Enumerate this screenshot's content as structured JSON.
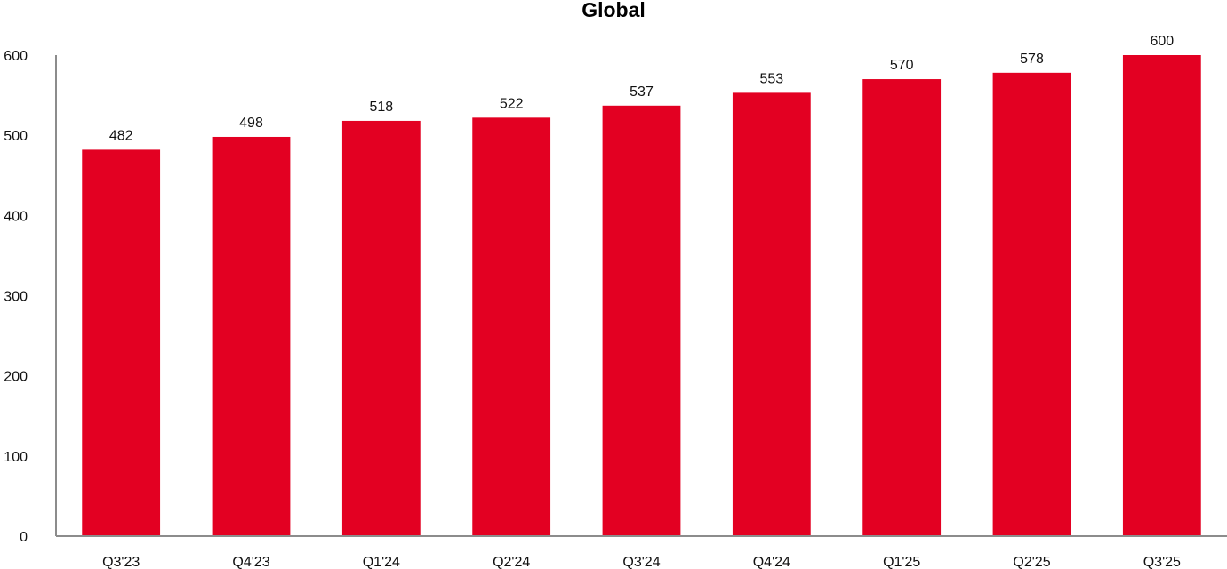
{
  "chart_data": {
    "type": "bar",
    "title": "Global",
    "xlabel": "",
    "ylabel": "",
    "categories": [
      "Q3'23",
      "Q4'23",
      "Q1'24",
      "Q2'24",
      "Q3'24",
      "Q4'24",
      "Q1'25",
      "Q2'25",
      "Q3'25"
    ],
    "values": [
      482,
      498,
      518,
      522,
      537,
      553,
      570,
      578,
      600
    ],
    "data_labels": [
      "482",
      "498",
      "518",
      "522",
      "537",
      "553",
      "570",
      "578",
      "600"
    ],
    "ylim": [
      0,
      600
    ],
    "yticks": [
      "0",
      "100",
      "200",
      "300",
      "400",
      "500",
      "600"
    ],
    "grid": false,
    "legend": "none",
    "colors": {
      "bar": "#e30022",
      "axis": "#8c8c8c"
    }
  }
}
